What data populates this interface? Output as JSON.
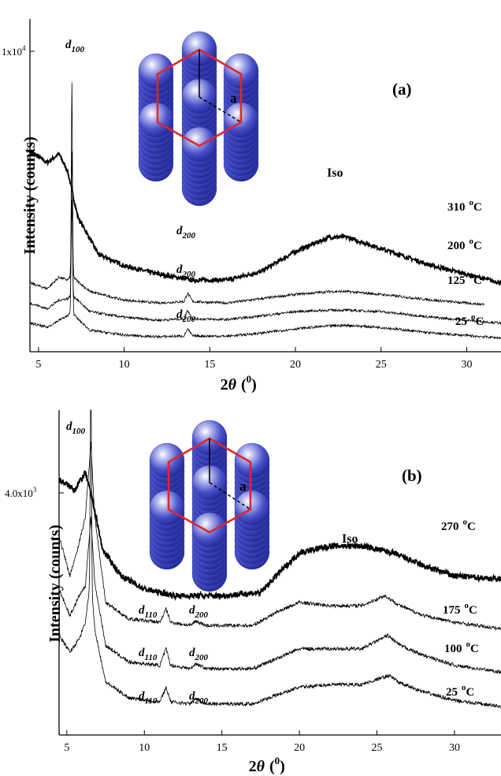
{
  "figure": {
    "xlabel": "2θ (°)",
    "ylabel": "Intensity (counts)"
  },
  "chart_data": [
    {
      "type": "line",
      "panel_label": "(a)",
      "xlabel": "2θ (°)",
      "ylabel": "Intensity (counts)",
      "xlim": [
        4.5,
        32
      ],
      "x_ticks": [
        5,
        10,
        15,
        20,
        25,
        30
      ],
      "y_tick_label": "1x10",
      "y_tick_exp": "4",
      "y_tick_value": 10000,
      "annotations": {
        "d100": "d",
        "d100_sub": "100",
        "iso": "Iso",
        "d200": "d",
        "d200_sub": "200"
      },
      "series": [
        {
          "name": "310 °C",
          "label": "310",
          "unit": "C",
          "bold": true,
          "sharp_peak": 0,
          "points": [
            [
              4.5,
              6500
            ],
            [
              5.5,
              6100
            ],
            [
              6.2,
              6400
            ],
            [
              6.7,
              5800
            ],
            [
              7.3,
              4200
            ],
            [
              8.5,
              2900
            ],
            [
              10,
              2500
            ],
            [
              12,
              2200
            ],
            [
              14,
              2000
            ],
            [
              16,
              2000
            ],
            [
              18,
              2300
            ],
            [
              20,
              3000
            ],
            [
              22,
              3500
            ],
            [
              23,
              3500
            ],
            [
              25,
              3100
            ],
            [
              28,
              2500
            ],
            [
              30,
              2200
            ],
            [
              32,
              1900
            ]
          ]
        },
        {
          "name": "200 °C",
          "label": "200",
          "unit": "C",
          "bold": false,
          "sharp_peak": 4300,
          "peak_x": 6.95,
          "points": [
            [
              4.5,
              1900
            ],
            [
              5.5,
              1700
            ],
            [
              6.2,
              2100
            ],
            [
              6.7,
              2000
            ],
            [
              6.95,
              2200
            ],
            [
              7.2,
              2000
            ],
            [
              8,
              1600
            ],
            [
              10,
              1300
            ],
            [
              12,
              1200
            ],
            [
              13.5,
              1250
            ],
            [
              13.7,
              1550
            ],
            [
              14,
              1250
            ],
            [
              16,
              1200
            ],
            [
              18,
              1350
            ],
            [
              20,
              1500
            ],
            [
              22,
              1600
            ],
            [
              23,
              1600
            ],
            [
              25,
              1500
            ],
            [
              28,
              1300
            ],
            [
              31,
              1150
            ]
          ]
        },
        {
          "name": "125 °C",
          "label": "125",
          "unit": "C",
          "bold": false,
          "sharp_peak": 3300,
          "peak_x": 6.95,
          "points": [
            [
              4.5,
              1200
            ],
            [
              5.5,
              1000
            ],
            [
              6.2,
              1300
            ],
            [
              6.7,
              1350
            ],
            [
              6.95,
              1500
            ],
            [
              7.2,
              1350
            ],
            [
              8,
              900
            ],
            [
              10,
              700
            ],
            [
              12,
              600
            ],
            [
              13.5,
              650
            ],
            [
              13.7,
              950
            ],
            [
              14,
              650
            ],
            [
              16,
              620
            ],
            [
              18,
              750
            ],
            [
              20,
              900
            ],
            [
              22,
              950
            ],
            [
              23,
              950
            ],
            [
              25,
              900
            ],
            [
              28,
              700
            ],
            [
              32,
              500
            ]
          ]
        },
        {
          "name": "25 °C",
          "label": "25",
          "unit": "C",
          "bold": false,
          "sharp_peak": 8000,
          "peak_x": 6.95,
          "points": [
            [
              4.5,
              500
            ],
            [
              5.5,
              350
            ],
            [
              6.2,
              600
            ],
            [
              6.7,
              750
            ],
            [
              6.95,
              900
            ],
            [
              7.2,
              700
            ],
            [
              8,
              250
            ],
            [
              10,
              80
            ],
            [
              12,
              20
            ],
            [
              13.5,
              50
            ],
            [
              13.7,
              300
            ],
            [
              14,
              50
            ],
            [
              16,
              40
            ],
            [
              18,
              150
            ],
            [
              20,
              300
            ],
            [
              22,
              400
            ],
            [
              23,
              420
            ],
            [
              25,
              350
            ],
            [
              28,
              150
            ],
            [
              32,
              -20
            ]
          ]
        }
      ]
    },
    {
      "type": "line",
      "panel_label": "(b)",
      "xlabel": "2θ (°)",
      "ylabel": "Intensity (counts)",
      "xlim": [
        4.5,
        33
      ],
      "x_ticks": [
        5,
        10,
        15,
        20,
        25,
        30
      ],
      "y_tick_label": "4.0x10",
      "y_tick_exp": "3",
      "y_tick_value": 4000,
      "annotations": {
        "d100": "d",
        "d100_sub": "100",
        "iso": "Iso",
        "d110": "d",
        "d110_sub": "110",
        "d200": "d",
        "d200_sub": "200"
      },
      "series": [
        {
          "name": "270 °C",
          "label": "270",
          "unit": "C",
          "bold": true,
          "points": [
            [
              4.5,
              3850
            ],
            [
              5.5,
              3700
            ],
            [
              6.2,
              3950
            ],
            [
              6.7,
              3500
            ],
            [
              7.3,
              2800
            ],
            [
              8.5,
              2400
            ],
            [
              10,
              2200
            ],
            [
              12,
              2100
            ],
            [
              15,
              2100
            ],
            [
              17.5,
              2150
            ],
            [
              18.5,
              2400
            ],
            [
              20,
              2750
            ],
            [
              22,
              2850
            ],
            [
              24,
              2850
            ],
            [
              26,
              2750
            ],
            [
              28,
              2550
            ],
            [
              30,
              2400
            ],
            [
              33,
              2350
            ]
          ]
        },
        {
          "name": "175 °C",
          "label": "175",
          "unit": "C",
          "bold": false,
          "points": [
            [
              4.5,
              3000
            ],
            [
              5.2,
              2400
            ],
            [
              5.8,
              2900
            ],
            [
              6.2,
              3300
            ],
            [
              6.55,
              4400
            ],
            [
              6.8,
              3300
            ],
            [
              7.5,
              2000
            ],
            [
              9,
              1750
            ],
            [
              11,
              1700
            ],
            [
              11.4,
              1900
            ],
            [
              11.7,
              1700
            ],
            [
              13,
              1650
            ],
            [
              13.3,
              1720
            ],
            [
              14,
              1650
            ],
            [
              17,
              1650
            ],
            [
              18.5,
              1850
            ],
            [
              20,
              2000
            ],
            [
              22,
              1950
            ],
            [
              24,
              1950
            ],
            [
              25.5,
              2100
            ],
            [
              26.5,
              1950
            ],
            [
              28,
              1800
            ],
            [
              30,
              1700
            ],
            [
              33,
              1600
            ]
          ]
        },
        {
          "name": "100 °C",
          "label": "100",
          "unit": "C",
          "bold": false,
          "points": [
            [
              4.5,
              2200
            ],
            [
              5.2,
              1800
            ],
            [
              5.8,
              2100
            ],
            [
              6.2,
              2250
            ],
            [
              6.55,
              3300
            ],
            [
              6.8,
              2300
            ],
            [
              7.5,
              1350
            ],
            [
              9,
              1100
            ],
            [
              11,
              1050
            ],
            [
              11.4,
              1300
            ],
            [
              11.7,
              1050
            ],
            [
              13,
              1000
            ],
            [
              13.3,
              1080
            ],
            [
              14,
              1000
            ],
            [
              17,
              1000
            ],
            [
              18.5,
              1150
            ],
            [
              20,
              1300
            ],
            [
              22,
              1300
            ],
            [
              24,
              1300
            ],
            [
              25.7,
              1500
            ],
            [
              26.5,
              1350
            ],
            [
              28,
              1200
            ],
            [
              30,
              1050
            ],
            [
              33,
              950
            ]
          ]
        },
        {
          "name": "25 °C",
          "label": "25",
          "unit": "C",
          "bold": false,
          "sharp_peak": 4300,
          "peak_x": 6.55,
          "points": [
            [
              4.5,
              1500
            ],
            [
              5.2,
              1250
            ],
            [
              5.8,
              1450
            ],
            [
              6.2,
              1700
            ],
            [
              6.55,
              2400
            ],
            [
              6.8,
              1600
            ],
            [
              7.5,
              800
            ],
            [
              9,
              560
            ],
            [
              11,
              500
            ],
            [
              11.4,
              720
            ],
            [
              11.7,
              500
            ],
            [
              13,
              470
            ],
            [
              13.3,
              550
            ],
            [
              14,
              470
            ],
            [
              17,
              470
            ],
            [
              18.5,
              600
            ],
            [
              20,
              720
            ],
            [
              22,
              760
            ],
            [
              24,
              760
            ],
            [
              25.8,
              900
            ],
            [
              26.5,
              780
            ],
            [
              28,
              650
            ],
            [
              30,
              520
            ],
            [
              33,
              430
            ]
          ]
        }
      ]
    }
  ]
}
